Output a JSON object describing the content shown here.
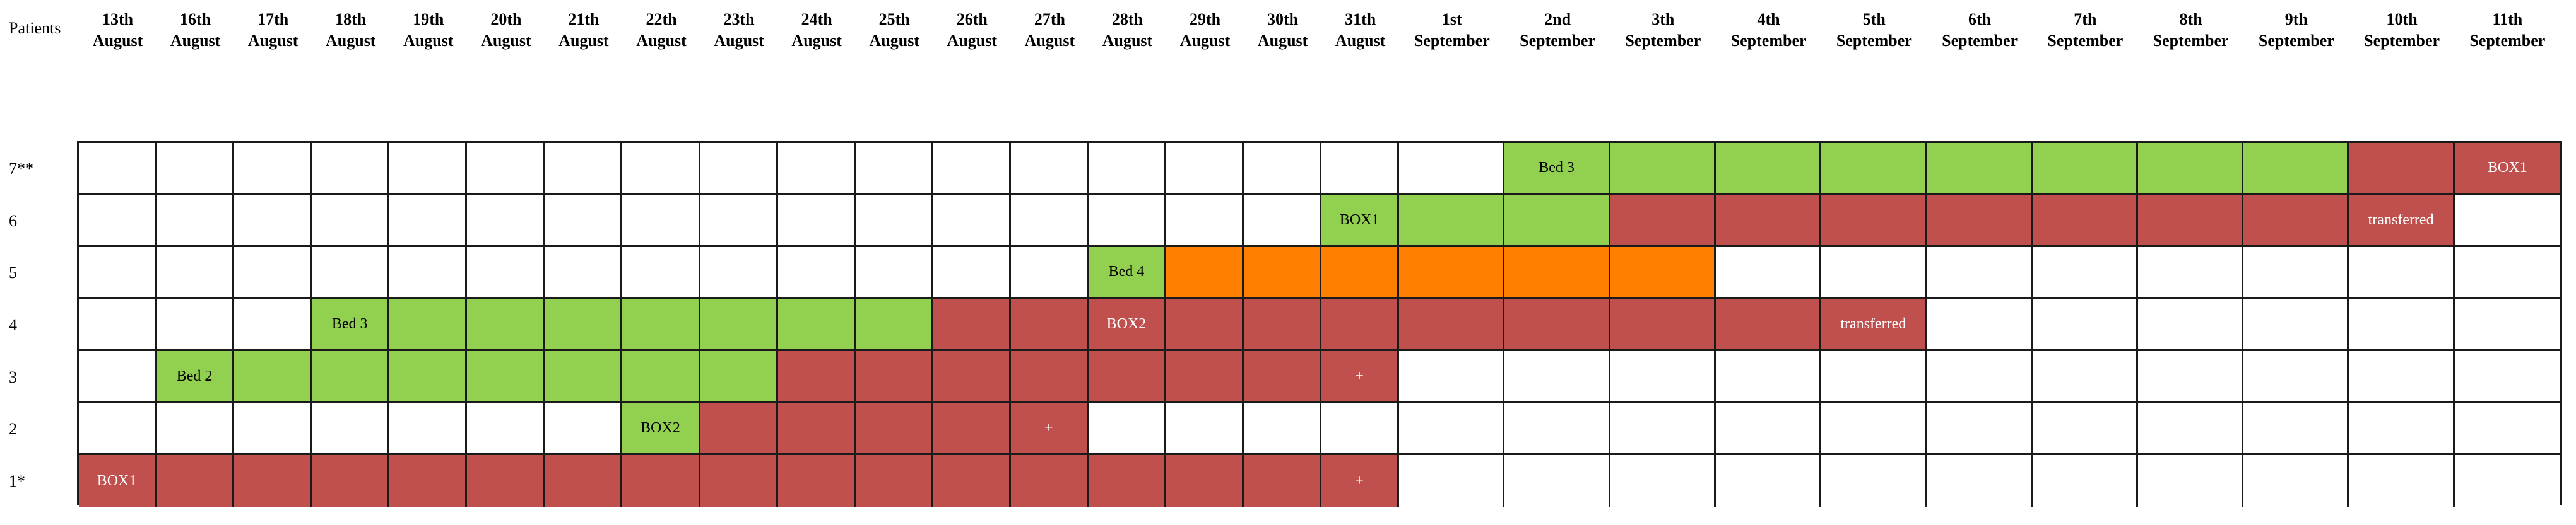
{
  "header": {
    "patients_label": "Patients"
  },
  "colors": {
    "empty": "#ffffff",
    "green": "#92d050",
    "red": "#c0504d",
    "orange": "#ff8000",
    "grid_line": "#1a1a1a"
  },
  "dates": [
    {
      "day": "13th",
      "month": "August"
    },
    {
      "day": "16th",
      "month": "August"
    },
    {
      "day": "17th",
      "month": "August"
    },
    {
      "day": "18th",
      "month": "August"
    },
    {
      "day": "19th",
      "month": "August"
    },
    {
      "day": "20th",
      "month": "August"
    },
    {
      "day": "21th",
      "month": "August"
    },
    {
      "day": "22th",
      "month": "August"
    },
    {
      "day": "23th",
      "month": "August"
    },
    {
      "day": "24th",
      "month": "August"
    },
    {
      "day": "25th",
      "month": "August"
    },
    {
      "day": "26th",
      "month": "August"
    },
    {
      "day": "27th",
      "month": "August"
    },
    {
      "day": "28th",
      "month": "August"
    },
    {
      "day": "29th",
      "month": "August"
    },
    {
      "day": "30th",
      "month": "August"
    },
    {
      "day": "31th",
      "month": "August"
    },
    {
      "day": "1st",
      "month": "September"
    },
    {
      "day": "2nd",
      "month": "September"
    },
    {
      "day": "3th",
      "month": "September"
    },
    {
      "day": "4th",
      "month": "September"
    },
    {
      "day": "5th",
      "month": "September"
    },
    {
      "day": "6th",
      "month": "September"
    },
    {
      "day": "7th",
      "month": "September"
    },
    {
      "day": "8th",
      "month": "September"
    },
    {
      "day": "9th",
      "month": "September"
    },
    {
      "day": "10th",
      "month": "September"
    },
    {
      "day": "11th",
      "month": "September"
    }
  ],
  "patients": [
    {
      "label": "7**",
      "segments": [
        {
          "from": 18,
          "to": 25,
          "color": "green"
        },
        {
          "from": 26,
          "to": 27,
          "color": "red"
        }
      ],
      "notes": [
        {
          "col": 18,
          "text": "Bed 3"
        },
        {
          "col": 27,
          "text": "BOX1"
        }
      ]
    },
    {
      "label": "6",
      "segments": [
        {
          "from": 16,
          "to": 18,
          "color": "green"
        },
        {
          "from": 19,
          "to": 26,
          "color": "red"
        }
      ],
      "notes": [
        {
          "col": 16,
          "text": "BOX1"
        },
        {
          "col": 26,
          "text": "transferred"
        }
      ]
    },
    {
      "label": "5",
      "segments": [
        {
          "from": 13,
          "to": 13,
          "color": "green"
        },
        {
          "from": 14,
          "to": 19,
          "color": "orange"
        }
      ],
      "notes": [
        {
          "col": 13,
          "text": "Bed 4"
        }
      ]
    },
    {
      "label": "4",
      "segments": [
        {
          "from": 3,
          "to": 10,
          "color": "green"
        },
        {
          "from": 11,
          "to": 21,
          "color": "red"
        }
      ],
      "notes": [
        {
          "col": 3,
          "text": "Bed 3"
        },
        {
          "col": 13,
          "text": "BOX2"
        },
        {
          "col": 21,
          "text": "transferred"
        }
      ]
    },
    {
      "label": "3",
      "segments": [
        {
          "from": 1,
          "to": 8,
          "color": "green"
        },
        {
          "from": 9,
          "to": 16,
          "color": "red"
        }
      ],
      "notes": [
        {
          "col": 1,
          "text": "Bed 2"
        },
        {
          "col": 16,
          "text": "+"
        }
      ]
    },
    {
      "label": "2",
      "segments": [
        {
          "from": 7,
          "to": 7,
          "color": "green"
        },
        {
          "from": 8,
          "to": 12,
          "color": "red"
        }
      ],
      "notes": [
        {
          "col": 7,
          "text": "BOX2"
        },
        {
          "col": 12,
          "text": "+"
        }
      ]
    },
    {
      "label": "1*",
      "segments": [
        {
          "from": 0,
          "to": 16,
          "color": "red"
        }
      ],
      "notes": [
        {
          "col": 0,
          "text": "BOX1"
        },
        {
          "col": 16,
          "text": "+"
        }
      ]
    }
  ]
}
